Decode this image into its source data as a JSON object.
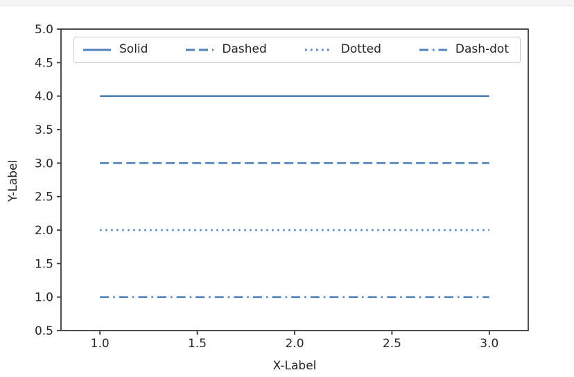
{
  "page": {
    "background": "#ffffff",
    "top_bar_color": "#f5f5f6"
  },
  "chart_data": {
    "type": "line",
    "title": "",
    "xlabel": "X-Label",
    "ylabel": "Y-Label",
    "xlim": [
      0.8,
      3.2
    ],
    "ylim": [
      0.5,
      5.0
    ],
    "xticks": [
      1.0,
      1.5,
      2.0,
      2.5,
      3.0
    ],
    "yticks": [
      0.5,
      1.0,
      1.5,
      2.0,
      2.5,
      3.0,
      3.5,
      4.0,
      4.5,
      5.0
    ],
    "grid": false,
    "legend_position": "upper center inside axes",
    "line_color": "#4e84ba",
    "axis_color": "#3a3a3a",
    "text_color": "#262626",
    "series": [
      {
        "name": "Solid",
        "style": "solid",
        "x": [
          1.0,
          3.0
        ],
        "y": [
          4.0,
          4.0
        ]
      },
      {
        "name": "Dashed",
        "style": "dashed",
        "x": [
          1.0,
          3.0
        ],
        "y": [
          3.0,
          3.0
        ]
      },
      {
        "name": "Dotted",
        "style": "dotted",
        "x": [
          1.0,
          3.0
        ],
        "y": [
          2.0,
          2.0
        ]
      },
      {
        "name": "Dash-dot",
        "style": "dashdot",
        "x": [
          1.0,
          3.0
        ],
        "y": [
          1.0,
          1.0
        ]
      }
    ]
  }
}
